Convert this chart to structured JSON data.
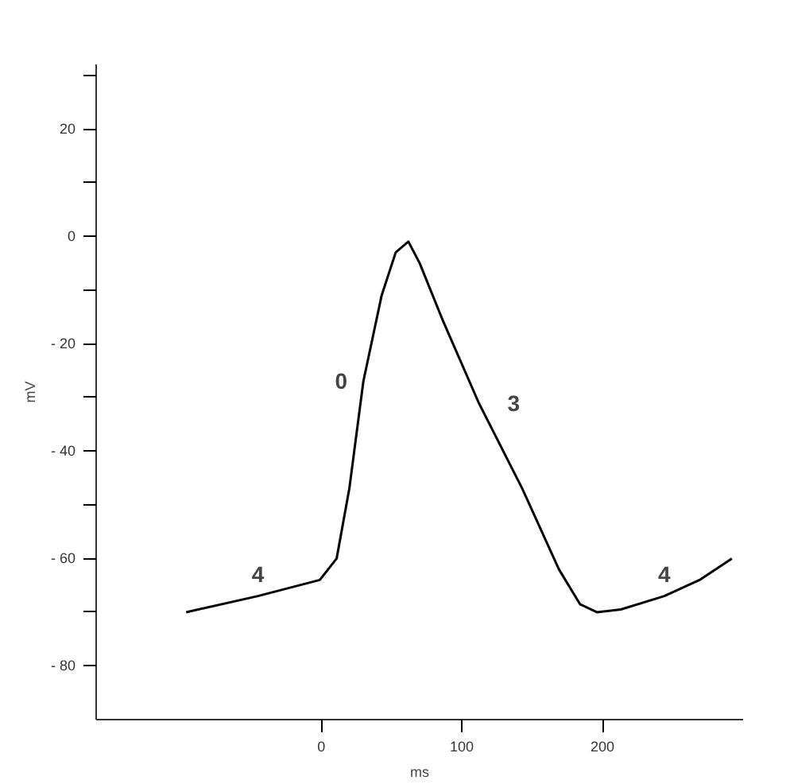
{
  "chart_data": {
    "type": "line",
    "xlabel": "ms",
    "ylabel": "mV",
    "x": [
      -96,
      -45,
      -1,
      11,
      20,
      30,
      43,
      53,
      62,
      70,
      87,
      112,
      143,
      169,
      184,
      196,
      213,
      244,
      269,
      292
    ],
    "series": [
      {
        "color": "#000000",
        "values": [
          -70,
          -67,
          -64,
          -60,
          -47,
          -27,
          -11,
          -3,
          -1,
          -5,
          -16,
          -31,
          -47,
          -62,
          -68.5,
          -70,
          -69.5,
          -67,
          -64,
          -60
        ]
      }
    ],
    "xlim": [
      -160,
      300
    ],
    "ylim": [
      -90,
      32
    ],
    "xticks": [
      0,
      100,
      200
    ],
    "yticks": [
      {
        "value": 30,
        "label": null
      },
      20,
      {
        "value": 10,
        "label": null
      },
      0,
      {
        "value": -10,
        "label": null
      },
      {
        "value": -20,
        "label": "- 20"
      },
      {
        "value": -30,
        "label": null
      },
      {
        "value": -40,
        "label": "- 40"
      },
      {
        "value": -50,
        "label": null
      },
      {
        "value": -60,
        "label": "- 60"
      },
      {
        "value": -70,
        "label": null
      },
      {
        "value": -80,
        "label": "- 80"
      }
    ],
    "annotations": [
      {
        "text": "4",
        "x": -45,
        "y": -67
      },
      {
        "text": "0",
        "x": 30,
        "y": -27
      },
      {
        "text": "3",
        "x": 112,
        "y": -31
      },
      {
        "text": "4",
        "x": 244,
        "y": -67
      }
    ],
    "grid": false,
    "marker": "none",
    "line_style": "solid"
  }
}
